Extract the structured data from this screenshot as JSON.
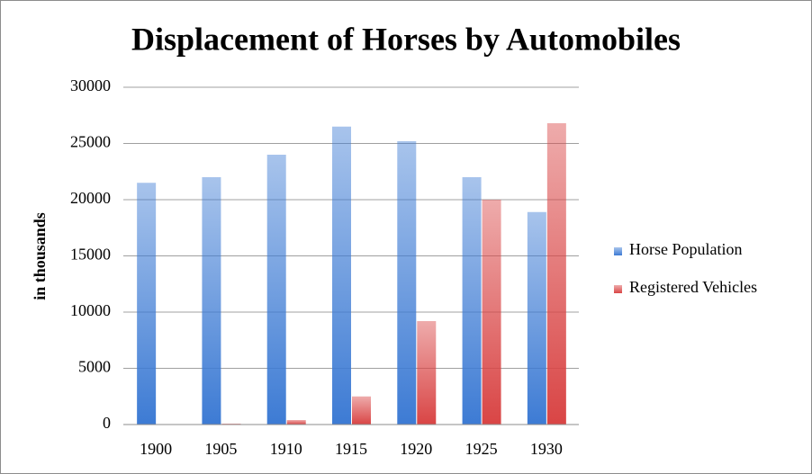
{
  "chart_data": {
    "type": "bar",
    "title": "Displacement of Horses by Automobiles",
    "y_label": "in thousands",
    "categories": [
      "1900",
      "1905",
      "1910",
      "1915",
      "1920",
      "1925",
      "1930"
    ],
    "series": [
      {
        "name": "Horse Population",
        "color": "#3d7bd4",
        "values": [
          21500,
          22000,
          24000,
          26500,
          25200,
          22000,
          18900
        ]
      },
      {
        "name": "Registered Vehicles",
        "color": "#d94545",
        "values": [
          8,
          78,
          400,
          2500,
          9200,
          20000,
          26800
        ]
      }
    ],
    "ylim": [
      0,
      30000
    ],
    "yticks": [
      0,
      5000,
      10000,
      15000,
      20000,
      25000,
      30000
    ],
    "grid": true,
    "legend": "right"
  }
}
